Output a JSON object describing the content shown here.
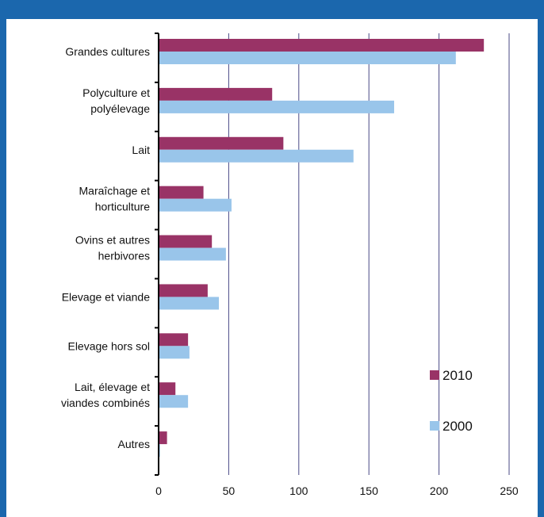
{
  "header": {
    "title": ""
  },
  "colors": {
    "frame": "#1b67ad",
    "series_2010": "#993366",
    "series_2000": "#99c5ea",
    "gridline": "#4a4a86"
  },
  "chart_data": {
    "type": "bar",
    "orientation": "horizontal",
    "categories": [
      [
        "Grandes cultures"
      ],
      [
        "Polyculture et",
        "polyélevage"
      ],
      [
        "Lait"
      ],
      [
        "Maraîchage et",
        "horticulture"
      ],
      [
        "Ovins et autres",
        "herbivores"
      ],
      [
        "Elevage et viande"
      ],
      [
        "Elevage hors sol"
      ],
      [
        "Lait, élevage et",
        "viandes combinés"
      ],
      [
        "Autres"
      ]
    ],
    "series": [
      {
        "name": "2010",
        "color": "#993366",
        "values": [
          232,
          81,
          89,
          32,
          38,
          35,
          21,
          12,
          6
        ]
      },
      {
        "name": "2000",
        "color": "#99c5ea",
        "values": [
          212,
          168,
          139,
          52,
          48,
          43,
          22,
          21,
          1
        ]
      }
    ],
    "xlim": [
      0,
      250
    ],
    "xticks": [
      "0",
      "50",
      "100",
      "150",
      "200",
      "250"
    ],
    "grid": "vertical",
    "legend": "bottom-right"
  }
}
